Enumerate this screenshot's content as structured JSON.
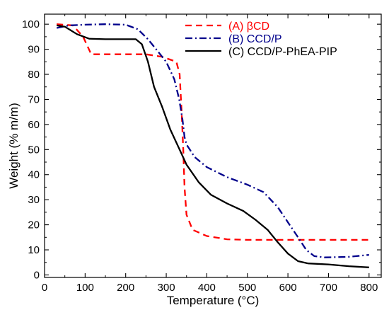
{
  "chart_data": {
    "type": "line",
    "title": "",
    "xlabel": "Temperature (°C)",
    "ylabel": "Weight (% m/m)",
    "xlim": [
      0,
      830
    ],
    "ylim": [
      -1,
      104
    ],
    "xticks": [
      0,
      100,
      200,
      300,
      400,
      500,
      600,
      700,
      800
    ],
    "yticks": [
      0,
      10,
      20,
      30,
      40,
      50,
      60,
      70,
      80,
      90,
      100
    ],
    "grid": false,
    "legend_position": "top-right",
    "series": [
      {
        "name": "(A) βCD",
        "color": "#ff0000",
        "style": "dashed",
        "points": [
          [
            30,
            100
          ],
          [
            70,
            99.5
          ],
          [
            95,
            95
          ],
          [
            115,
            88
          ],
          [
            150,
            88
          ],
          [
            200,
            88
          ],
          [
            250,
            88
          ],
          [
            290,
            87
          ],
          [
            325,
            85
          ],
          [
            333,
            80
          ],
          [
            338,
            65
          ],
          [
            342,
            50
          ],
          [
            345,
            35
          ],
          [
            350,
            24
          ],
          [
            365,
            18
          ],
          [
            400,
            15.5
          ],
          [
            450,
            14.2
          ],
          [
            500,
            14
          ],
          [
            600,
            14
          ],
          [
            700,
            14
          ],
          [
            800,
            14
          ]
        ]
      },
      {
        "name": "(B) CCD/P",
        "color": "#00008b",
        "style": "dashdot",
        "points": [
          [
            30,
            98.5
          ],
          [
            60,
            99.5
          ],
          [
            100,
            99.8
          ],
          [
            150,
            100
          ],
          [
            200,
            99.8
          ],
          [
            230,
            98
          ],
          [
            255,
            94
          ],
          [
            280,
            89
          ],
          [
            300,
            85
          ],
          [
            320,
            78
          ],
          [
            332,
            70
          ],
          [
            340,
            62
          ],
          [
            345,
            55
          ],
          [
            350,
            52
          ],
          [
            370,
            47
          ],
          [
            400,
            43
          ],
          [
            450,
            39
          ],
          [
            500,
            36
          ],
          [
            540,
            33
          ],
          [
            575,
            27
          ],
          [
            600,
            21
          ],
          [
            625,
            15
          ],
          [
            645,
            10
          ],
          [
            665,
            7.5
          ],
          [
            690,
            7
          ],
          [
            750,
            7.2
          ],
          [
            800,
            8
          ]
        ]
      },
      {
        "name": "(C) CCD/P-PhEA-PIP",
        "color": "#000000",
        "style": "solid",
        "points": [
          [
            30,
            99.5
          ],
          [
            50,
            99
          ],
          [
            80,
            96
          ],
          [
            110,
            94.2
          ],
          [
            150,
            94
          ],
          [
            200,
            94
          ],
          [
            225,
            94
          ],
          [
            240,
            92
          ],
          [
            255,
            85
          ],
          [
            270,
            75
          ],
          [
            290,
            67
          ],
          [
            310,
            58
          ],
          [
            330,
            51
          ],
          [
            350,
            44
          ],
          [
            380,
            37
          ],
          [
            410,
            32
          ],
          [
            450,
            28.5
          ],
          [
            490,
            25.5
          ],
          [
            520,
            22
          ],
          [
            550,
            18
          ],
          [
            575,
            13
          ],
          [
            600,
            8.5
          ],
          [
            625,
            5.5
          ],
          [
            650,
            4.6
          ],
          [
            700,
            4.2
          ],
          [
            750,
            3.5
          ],
          [
            800,
            3
          ]
        ]
      }
    ]
  }
}
